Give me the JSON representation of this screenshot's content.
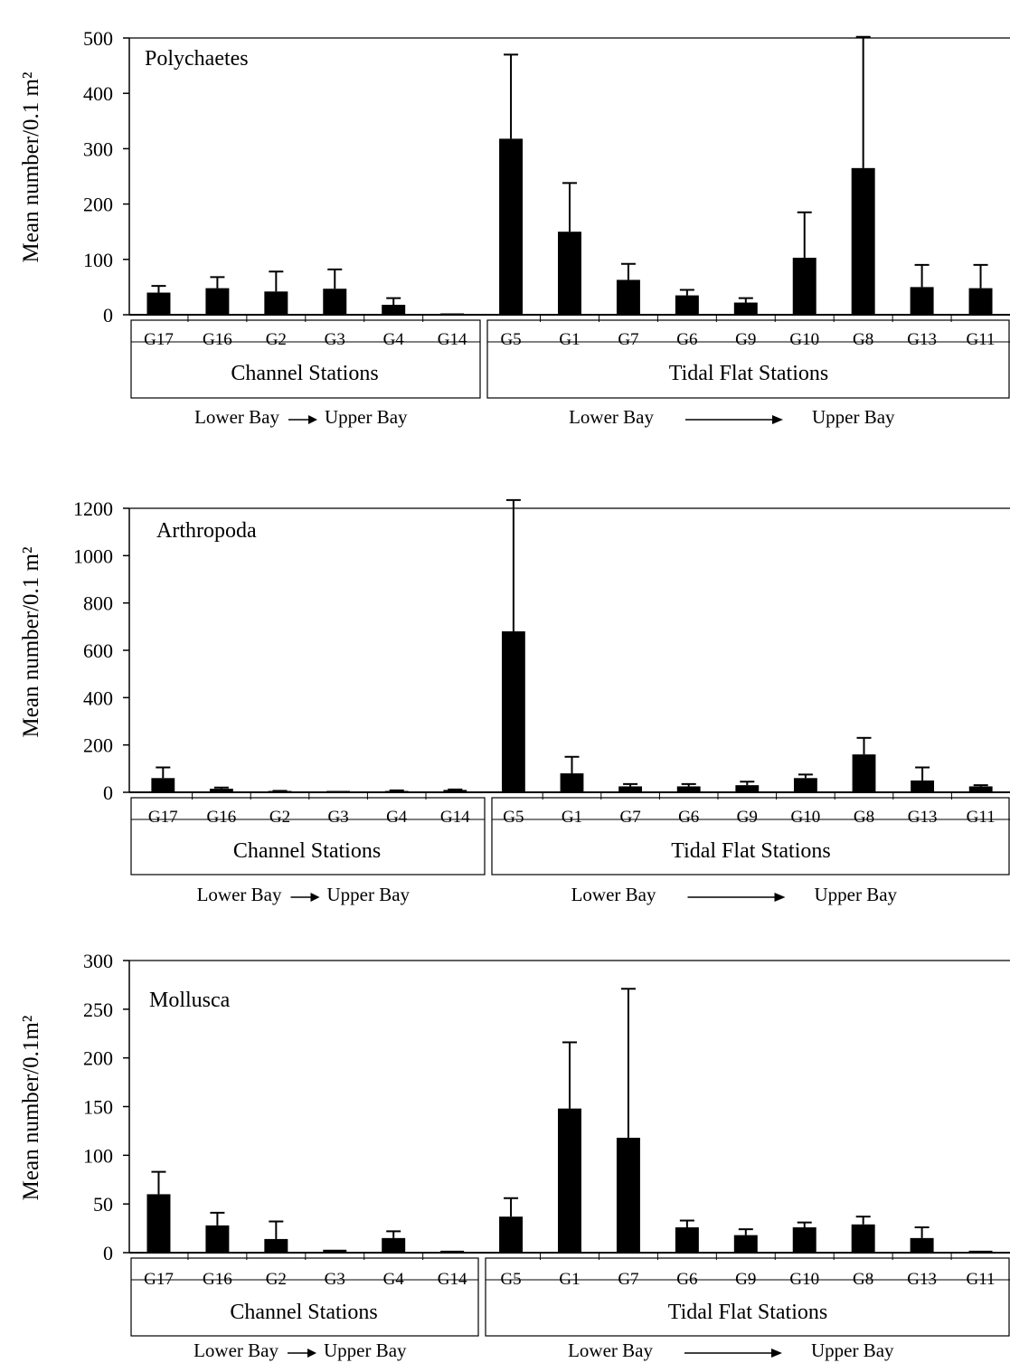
{
  "stations": [
    "G17",
    "G16",
    "G2",
    "G3",
    "G4",
    "G14",
    "G5",
    "G1",
    "G7",
    "G6",
    "G9",
    "G10",
    "G8",
    "G13",
    "G11"
  ],
  "groups": {
    "channel": {
      "label": "Channel Stations",
      "direction_from": "Lower Bay",
      "direction_to": "Upper Bay"
    },
    "tidal": {
      "label": "Tidal Flat Stations",
      "direction_from": "Lower Bay",
      "direction_to": "Upper Bay"
    }
  },
  "chart_data": [
    {
      "type": "bar",
      "title": "Polychaetes",
      "ylabel": "Mean number/0.1 m²",
      "ylim": [
        0,
        500
      ],
      "yticks": [
        0,
        100,
        200,
        300,
        400,
        500
      ],
      "categories": [
        "G17",
        "G16",
        "G2",
        "G3",
        "G4",
        "G14",
        "G5",
        "G1",
        "G7",
        "G6",
        "G9",
        "G10",
        "G8",
        "G13",
        "G11"
      ],
      "values": [
        40,
        48,
        42,
        47,
        18,
        2,
        318,
        150,
        63,
        35,
        22,
        103,
        265,
        50,
        48
      ],
      "error_upper": [
        52,
        68,
        78,
        82,
        30,
        2,
        470,
        238,
        92,
        45,
        30,
        185,
        502,
        90,
        90
      ]
    },
    {
      "type": "bar",
      "title": "Arthropoda",
      "ylabel": "Mean number/0.1 m²",
      "ylim": [
        0,
        1200
      ],
      "yticks": [
        0,
        200,
        400,
        600,
        800,
        1000,
        1200
      ],
      "categories": [
        "G17",
        "G16",
        "G2",
        "G3",
        "G4",
        "G14",
        "G5",
        "G1",
        "G7",
        "G6",
        "G9",
        "G10",
        "G8",
        "G13",
        "G11"
      ],
      "values": [
        60,
        15,
        3,
        1,
        5,
        10,
        680,
        80,
        25,
        25,
        30,
        60,
        160,
        50,
        25
      ],
      "error_upper": [
        105,
        20,
        6,
        2,
        8,
        12,
        1235,
        150,
        35,
        35,
        45,
        75,
        230,
        105,
        30
      ]
    },
    {
      "type": "bar",
      "title": "Mollusca",
      "ylabel": "Mean number/0.1m²",
      "ylim": [
        0,
        300
      ],
      "yticks": [
        0,
        50,
        100,
        150,
        200,
        250,
        300
      ],
      "categories": [
        "G17",
        "G16",
        "G2",
        "G3",
        "G4",
        "G14",
        "G5",
        "G1",
        "G7",
        "G6",
        "G9",
        "G10",
        "G8",
        "G13",
        "G11"
      ],
      "values": [
        60,
        28,
        14,
        3,
        15,
        2,
        37,
        148,
        118,
        26,
        18,
        26,
        29,
        15,
        2
      ],
      "error_upper": [
        83,
        41,
        32,
        3,
        22,
        2,
        56,
        216,
        271,
        33,
        24,
        31,
        37,
        26,
        2
      ]
    }
  ]
}
